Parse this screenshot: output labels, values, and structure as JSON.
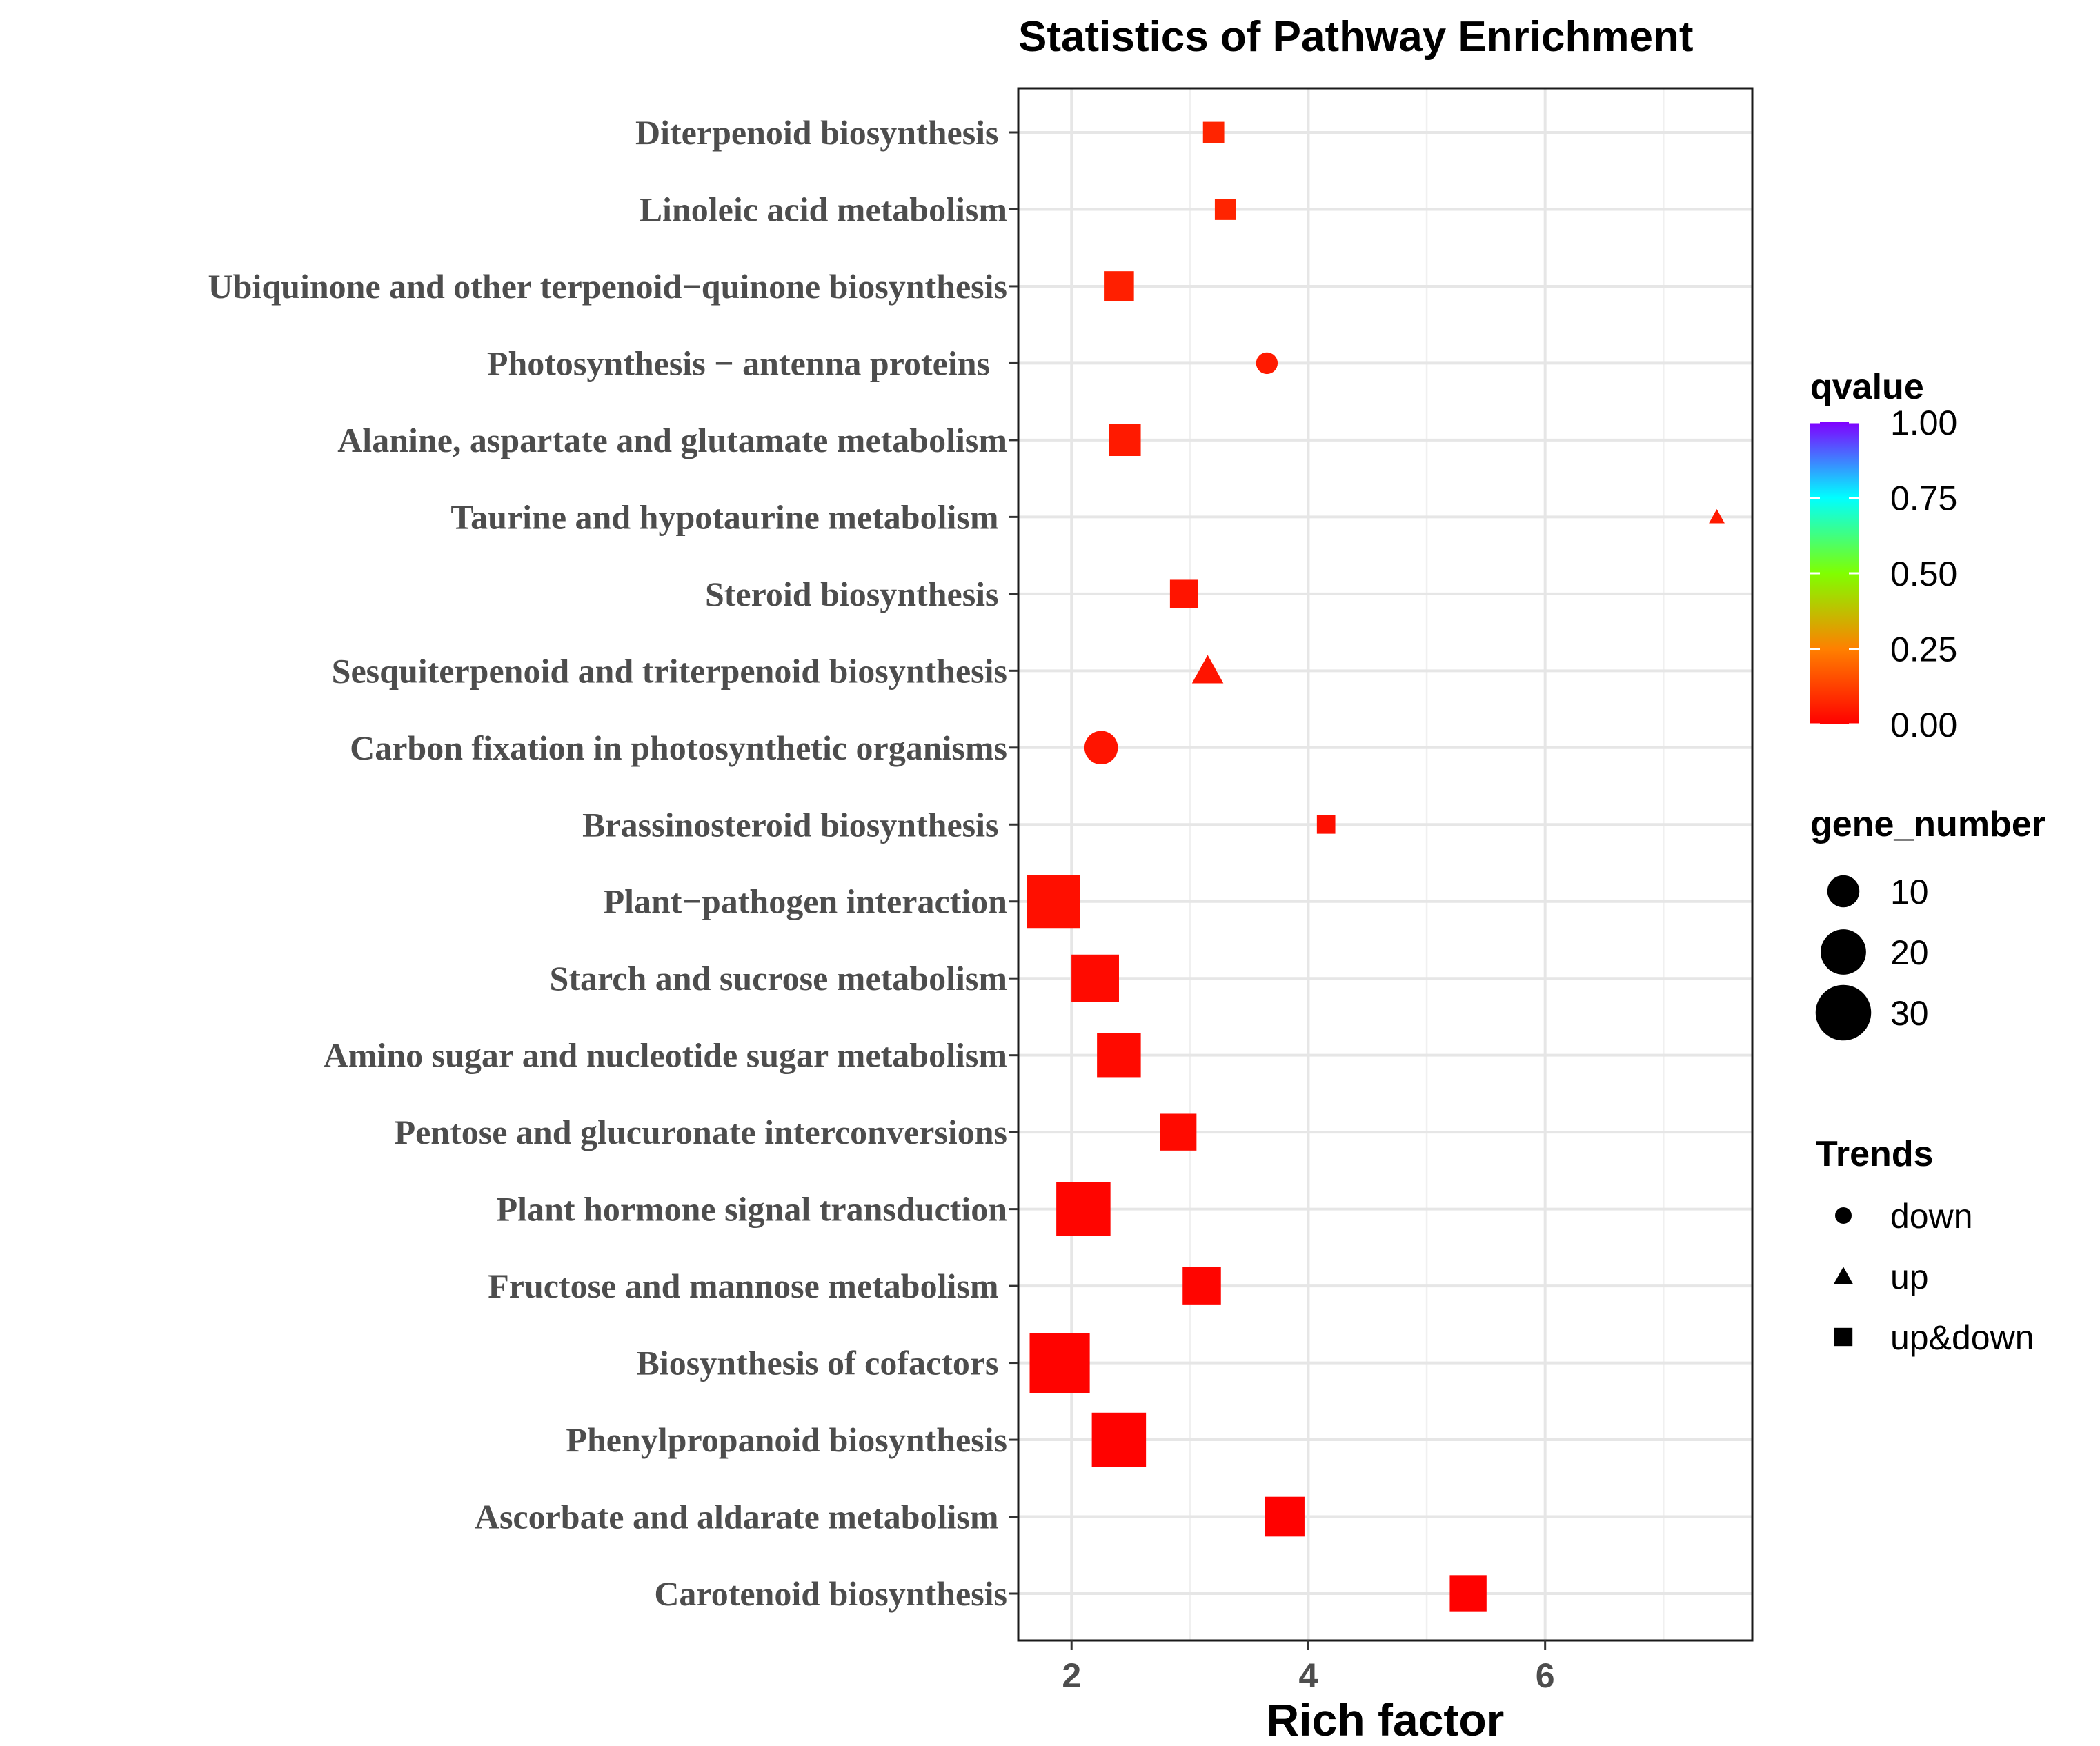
{
  "chart_data": {
    "type": "scatter",
    "title": "Statistics of Pathway Enrichment",
    "xlabel": "Rich factor",
    "ylabel": "",
    "xlim": [
      1.55,
      7.75
    ],
    "x_ticks": [
      2,
      4,
      6
    ],
    "x_tick_labels": [
      "2",
      "4",
      "6"
    ],
    "grid": true,
    "categories": [
      "Diterpenoid biosynthesis ",
      "Linoleic acid metabolism",
      "Ubiquinone and other terpenoid−quinone biosynthesis",
      "Photosynthesis − antenna proteins  ",
      "Alanine, aspartate and glutamate metabolism",
      "Taurine and hypotaurine metabolism ",
      "Steroid biosynthesis ",
      "Sesquiterpenoid and triterpenoid biosynthesis",
      "Carbon fixation in photosynthetic organisms",
      "Brassinosteroid biosynthesis ",
      "Plant−pathogen interaction",
      "Starch and sucrose metabolism",
      "Amino sugar and nucleotide sugar metabolism",
      "Pentose and glucuronate interconversions",
      "Plant hormone signal transduction",
      "Fructose and mannose metabolism ",
      "Biosynthesis of cofactors ",
      "Phenylpropanoid biosynthesis",
      "Ascorbate and aldarate metabolism ",
      "Carotenoid biosynthesis"
    ],
    "points": [
      {
        "pathway": "Diterpenoid biosynthesis",
        "rich_factor": 3.2,
        "gene_number": 4,
        "qvalue": 0.07,
        "trend": "up&down"
      },
      {
        "pathway": "Linoleic acid metabolism",
        "rich_factor": 3.3,
        "gene_number": 4,
        "qvalue": 0.07,
        "trend": "up&down"
      },
      {
        "pathway": "Ubiquinone and other terpenoid−quinone biosynthesis",
        "rich_factor": 2.4,
        "gene_number": 8,
        "qvalue": 0.06,
        "trend": "up&down"
      },
      {
        "pathway": "Photosynthesis − antenna proteins",
        "rich_factor": 3.65,
        "gene_number": 5,
        "qvalue": 0.05,
        "trend": "down"
      },
      {
        "pathway": "Alanine, aspartate and glutamate metabolism",
        "rich_factor": 2.45,
        "gene_number": 9,
        "qvalue": 0.05,
        "trend": "up&down"
      },
      {
        "pathway": "Taurine and hypotaurine metabolism",
        "rich_factor": 7.45,
        "gene_number": 2,
        "qvalue": 0.05,
        "trend": "up"
      },
      {
        "pathway": "Steroid biosynthesis",
        "rich_factor": 2.95,
        "gene_number": 7,
        "qvalue": 0.04,
        "trend": "up&down"
      },
      {
        "pathway": "Sesquiterpenoid and triterpenoid biosynthesis",
        "rich_factor": 3.15,
        "gene_number": 8,
        "qvalue": 0.04,
        "trend": "up"
      },
      {
        "pathway": "Carbon fixation in photosynthetic organisms",
        "rich_factor": 2.25,
        "gene_number": 12,
        "qvalue": 0.04,
        "trend": "down"
      },
      {
        "pathway": "Brassinosteroid biosynthesis",
        "rich_factor": 4.15,
        "gene_number": 3,
        "qvalue": 0.03,
        "trend": "up&down"
      },
      {
        "pathway": "Plant−pathogen interaction",
        "rich_factor": 1.85,
        "gene_number": 25,
        "qvalue": 0.03,
        "trend": "up&down"
      },
      {
        "pathway": "Starch and sucrose metabolism",
        "rich_factor": 2.2,
        "gene_number": 20,
        "qvalue": 0.02,
        "trend": "up&down"
      },
      {
        "pathway": "Amino sugar and nucleotide sugar metabolism",
        "rich_factor": 2.4,
        "gene_number": 17,
        "qvalue": 0.02,
        "trend": "up&down"
      },
      {
        "pathway": "Pentose and glucuronate interconversions",
        "rich_factor": 2.9,
        "gene_number": 12,
        "qvalue": 0.02,
        "trend": "up&down"
      },
      {
        "pathway": "Plant hormone signal transduction",
        "rich_factor": 2.1,
        "gene_number": 26,
        "qvalue": 0.01,
        "trend": "up&down"
      },
      {
        "pathway": "Fructose and mannose metabolism",
        "rich_factor": 3.1,
        "gene_number": 13,
        "qvalue": 0.01,
        "trend": "up&down"
      },
      {
        "pathway": "Biosynthesis of cofactors",
        "rich_factor": 1.9,
        "gene_number": 32,
        "qvalue": 0.005,
        "trend": "up&down"
      },
      {
        "pathway": "Phenylpropanoid biosynthesis",
        "rich_factor": 2.4,
        "gene_number": 26,
        "qvalue": 0.003,
        "trend": "up&down"
      },
      {
        "pathway": "Ascorbate and aldarate metabolism",
        "rich_factor": 3.8,
        "gene_number": 14,
        "qvalue": 0.002,
        "trend": "up&down"
      },
      {
        "pathway": "Carotenoid biosynthesis",
        "rich_factor": 5.35,
        "gene_number": 12,
        "qvalue": 0.001,
        "trend": "up&down"
      }
    ],
    "legend": {
      "placement": "right",
      "color": {
        "title": "qvalue",
        "ticks": [
          "1.00",
          "0.75",
          "0.50",
          "0.25",
          "0.00"
        ],
        "range": [
          0,
          1
        ],
        "stops": [
          "#ff0000",
          "#ff8000",
          "#80ff00",
          "#00ffff",
          "#8000ff"
        ]
      },
      "size": {
        "title": "gene_number",
        "values": [
          10,
          20,
          30
        ],
        "labels": [
          "10",
          "20",
          "30"
        ]
      },
      "shape": {
        "title": "Trends",
        "items": [
          {
            "label": "down",
            "shape": "circle"
          },
          {
            "label": "up",
            "shape": "triangle"
          },
          {
            "label": "up&down",
            "shape": "square"
          }
        ]
      }
    }
  }
}
